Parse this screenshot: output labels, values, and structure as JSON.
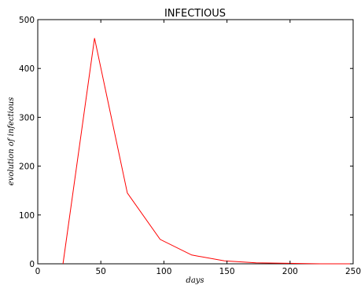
{
  "chart_data": {
    "type": "line",
    "title": "INFECTIOUS",
    "xlabel": "days",
    "ylabel": "evolution of infectious",
    "xlim": [
      0,
      250
    ],
    "ylim": [
      0,
      500
    ],
    "xticks": [
      0,
      50,
      100,
      150,
      200,
      250
    ],
    "yticks": [
      0,
      100,
      200,
      300,
      400,
      500
    ],
    "grid": false,
    "series": [
      {
        "color": "#ff0000",
        "x": [
          20,
          45,
          71,
          97,
          122,
          148,
          173,
          199,
          224,
          250
        ],
        "y": [
          0,
          462,
          145,
          50,
          18,
          6,
          2,
          1,
          0,
          0
        ]
      }
    ]
  }
}
